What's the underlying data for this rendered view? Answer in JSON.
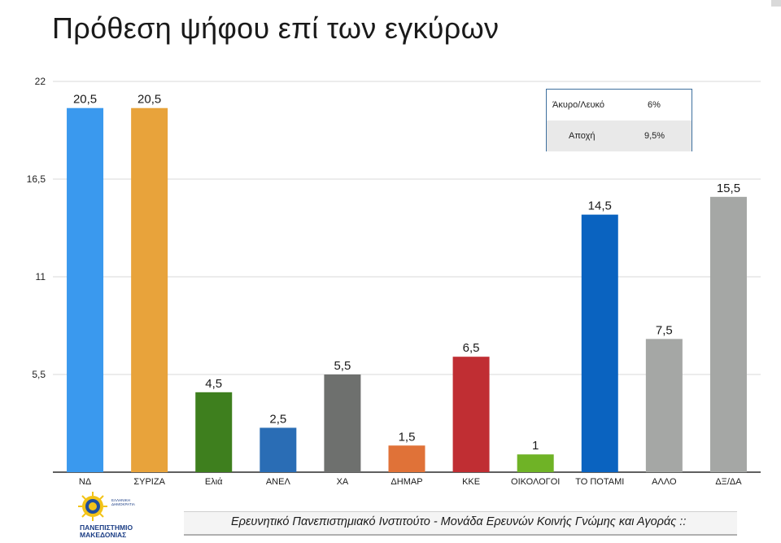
{
  "title": "Πρόθεση ψήφου επί των εγκύρων",
  "chart_data": {
    "type": "bar",
    "categories": [
      "ΝΔ",
      "ΣΥΡΙΖΑ",
      "Ελιά",
      "ΑΝΕΛ",
      "ΧΑ",
      "ΔΗΜΑΡ",
      "ΚΚΕ",
      "ΟΙΚΟΛΟΓΟΙ",
      "ΤΟ ΠΟΤΑΜΙ",
      "ΑΛΛΟ",
      "ΔΞ/ΔΑ"
    ],
    "values": [
      20.5,
      20.5,
      4.5,
      2.5,
      5.5,
      1.5,
      6.5,
      1,
      14.5,
      7.5,
      15.5
    ],
    "value_labels": [
      "20,5",
      "20,5",
      "4,5",
      "2,5",
      "5,5",
      "1,5",
      "6,5",
      "1",
      "14,5",
      "7,5",
      "15,5"
    ],
    "colors": [
      "#3a99ee",
      "#e8a33b",
      "#3e7f1e",
      "#2a6db5",
      "#6e706e",
      "#e07238",
      "#c02e33",
      "#6fb326",
      "#0a63c0",
      "#a5a7a5",
      "#a5a7a5"
    ],
    "ylim": [
      0,
      22
    ],
    "yticks": [
      5.5,
      11,
      16.5,
      22
    ],
    "ytick_labels": [
      "5,5",
      "11",
      "16,5",
      "22"
    ],
    "grid": true,
    "title": "Πρόθεση ψήφου επί των εγκύρων",
    "xlabel": "",
    "ylabel": ""
  },
  "legend_table": {
    "rows": [
      {
        "label": "Άκυρο/Λευκό",
        "value": "6%"
      },
      {
        "label": "Αποχή",
        "value": "9,5%"
      }
    ]
  },
  "footer": {
    "text": "Ερευνητικό Πανεπιστημιακό Ινστιτούτο - Μονάδα Ερευνών Κοινής Γνώμης και Αγοράς ::",
    "logo_caption": "ΠΑΝΕΠΙΣΤΗΜΙΟ ΜΑΚΕΔΟΝΙΑΣ",
    "logo_small_text": "ΕΛΛΗΝΙΚΗ ΔΗΜΟΚΡΑΤΙΑ"
  }
}
